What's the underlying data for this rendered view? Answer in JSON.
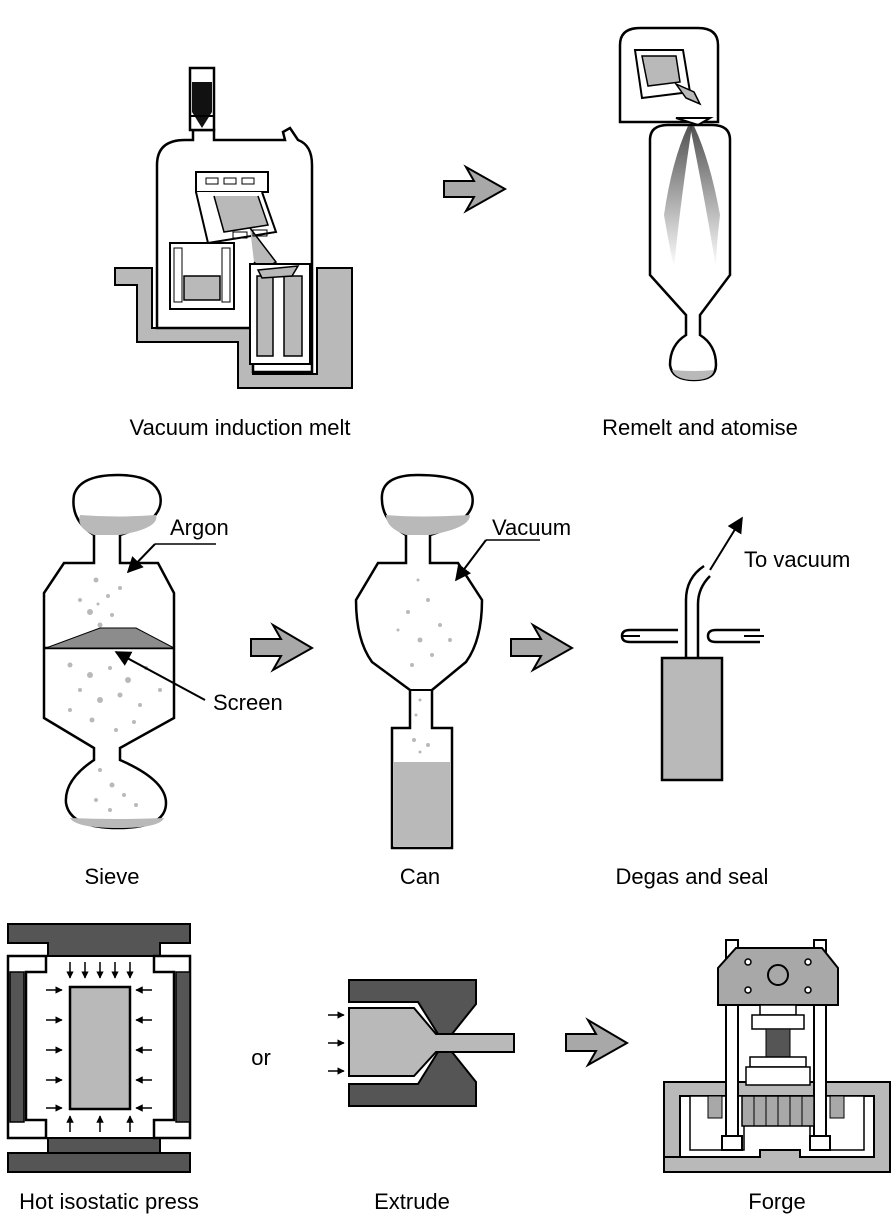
{
  "colors": {
    "powder_grey": "#b9b9b9",
    "arrow_grey": "#a8a8a8",
    "dark_grey": "#555555",
    "outline": "#000000"
  },
  "labels": {
    "vim": "Vacuum induction melt",
    "atomise": "Remelt and atomise",
    "sieve": "Sieve",
    "can": "Can",
    "degas": "Degas and seal",
    "hip": "Hot isostatic press",
    "or": "or",
    "extrude": "Extrude",
    "forge": "Forge"
  },
  "annotations": {
    "argon": "Argon",
    "screen": "Screen",
    "vacuum": "Vacuum",
    "to_vacuum": "To vacuum"
  }
}
